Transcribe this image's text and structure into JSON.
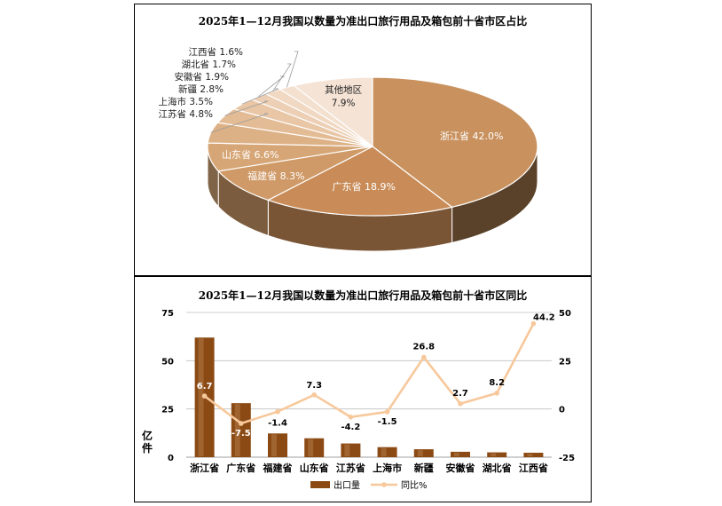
{
  "chart_data": [
    {
      "type": "pie",
      "title": "2025年1—12月我国以数量为准出口旅行用品及箱包前十省市区占比",
      "slices": [
        {
          "label": "浙江省",
          "value": 42.0,
          "display": "42.0%",
          "color": "#C8915E"
        },
        {
          "label": "广东省",
          "value": 18.9,
          "display": "18.9%",
          "color": "#C98C58"
        },
        {
          "label": "福建省",
          "value": 8.3,
          "display": "8.3%",
          "color": "#CF9A67"
        },
        {
          "label": "山东省",
          "value": 6.6,
          "display": "6.6%",
          "color": "#D6A676"
        },
        {
          "label": "江苏省",
          "value": 4.8,
          "display": "4.8%",
          "color": "#DDB186"
        },
        {
          "label": "上海市",
          "value": 3.5,
          "display": "3.5%",
          "color": "#E3BC96"
        },
        {
          "label": "新疆",
          "value": 2.8,
          "display": "2.8%",
          "color": "#E8C6A6"
        },
        {
          "label": "安徽省",
          "value": 1.9,
          "display": "1.9%",
          "color": "#ECCFB4"
        },
        {
          "label": "湖北省",
          "value": 1.7,
          "display": "1.7%",
          "color": "#F0D8C2"
        },
        {
          "label": "江西省",
          "value": 1.6,
          "display": "1.6%",
          "color": "#F3E0CF"
        },
        {
          "label": "其他地区",
          "value": 7.9,
          "display": "7.9%",
          "color": "#F5E3D5"
        }
      ]
    },
    {
      "type": "bar",
      "title": "2025年1—12月我国以数量为准出口旅行用品及箱包前十省市区同比",
      "categories": [
        "浙江省",
        "广东省",
        "福建省",
        "山东省",
        "江苏省",
        "上海市",
        "新疆",
        "安徽省",
        "湖北省",
        "江西省"
      ],
      "ylabel": "亿件",
      "ylim": [
        0,
        75
      ],
      "yticks": [
        "0",
        "25",
        "50",
        "75"
      ],
      "y2lim": [
        -25,
        50
      ],
      "y2ticks": [
        "-25",
        "0",
        "25",
        "50"
      ],
      "series": [
        {
          "name": "出口量",
          "type": "bar",
          "axis": "left",
          "color": "#8B4A14",
          "values": [
            62.0,
            28.0,
            12.3,
            9.8,
            7.1,
            5.2,
            4.1,
            2.8,
            2.5,
            2.3
          ]
        },
        {
          "name": "同比%",
          "type": "line",
          "axis": "right",
          "color": "#F7C89B",
          "values": [
            6.7,
            -7.5,
            -1.4,
            7.3,
            -4.2,
            -1.5,
            26.8,
            2.7,
            8.2,
            44.2
          ],
          "labels": [
            "6.7",
            "-7.5",
            "-1.4",
            "7.3",
            "-4.2",
            "-1.5",
            "26.8",
            "2.7",
            "8.2",
            "44.2"
          ]
        }
      ],
      "grid": true,
      "legend": "bottom"
    }
  ]
}
